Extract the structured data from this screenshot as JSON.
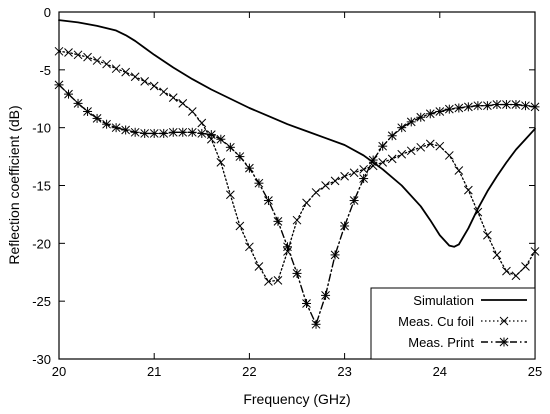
{
  "chart_data": {
    "type": "line",
    "xlabel": "Frequency (GHz)",
    "ylabel": "Reflection coefficient (dB)",
    "xlim": [
      20,
      25
    ],
    "ylim": [
      -30,
      0
    ],
    "xticks": [
      20,
      21,
      22,
      23,
      24,
      25
    ],
    "yticks": [
      0,
      -5,
      -10,
      -15,
      -20,
      -25,
      -30
    ],
    "grid": false,
    "legend_position": "bottom-right",
    "series": [
      {
        "name": "Simulation",
        "line_style": "solid",
        "marker": "none",
        "color": "#000000",
        "x": [
          20.0,
          20.2,
          20.4,
          20.6,
          20.7,
          20.8,
          20.9,
          21.0,
          21.2,
          21.4,
          21.6,
          21.8,
          22.0,
          22.2,
          22.4,
          22.6,
          22.8,
          23.0,
          23.2,
          23.4,
          23.6,
          23.8,
          23.9,
          24.0,
          24.1,
          24.15,
          24.2,
          24.3,
          24.4,
          24.5,
          24.6,
          24.7,
          24.8,
          24.9,
          25.0
        ],
        "y": [
          -0.7,
          -0.9,
          -1.2,
          -1.6,
          -2.0,
          -2.5,
          -3.1,
          -3.7,
          -4.8,
          -5.8,
          -6.7,
          -7.5,
          -8.3,
          -9.0,
          -9.7,
          -10.3,
          -10.9,
          -11.5,
          -12.4,
          -13.6,
          -15.0,
          -16.8,
          -18.0,
          -19.3,
          -20.2,
          -20.3,
          -20.1,
          -18.7,
          -17.0,
          -15.5,
          -14.2,
          -13.0,
          -11.9,
          -11.0,
          -10.1
        ]
      },
      {
        "name": "Meas. Cu foil",
        "line_style": "dotted",
        "marker": "x",
        "color": "#000000",
        "x": [
          20.0,
          20.1,
          20.2,
          20.3,
          20.4,
          20.5,
          20.6,
          20.7,
          20.8,
          20.9,
          21.0,
          21.1,
          21.2,
          21.3,
          21.4,
          21.5,
          21.6,
          21.7,
          21.8,
          21.9,
          22.0,
          22.1,
          22.2,
          22.3,
          22.4,
          22.5,
          22.6,
          22.7,
          22.8,
          22.9,
          23.0,
          23.1,
          23.2,
          23.3,
          23.4,
          23.5,
          23.6,
          23.7,
          23.8,
          23.9,
          24.0,
          24.1,
          24.2,
          24.3,
          24.4,
          24.5,
          24.6,
          24.7,
          24.8,
          24.9,
          25.0
        ],
        "y": [
          -3.4,
          -3.5,
          -3.7,
          -3.9,
          -4.2,
          -4.5,
          -4.9,
          -5.2,
          -5.6,
          -6.0,
          -6.4,
          -6.9,
          -7.4,
          -7.9,
          -8.6,
          -9.6,
          -11.0,
          -13.0,
          -15.8,
          -18.5,
          -20.3,
          -22.0,
          -23.3,
          -23.2,
          -20.7,
          -18.0,
          -16.5,
          -15.6,
          -15.0,
          -14.6,
          -14.2,
          -13.9,
          -13.6,
          -13.3,
          -13.0,
          -12.7,
          -12.3,
          -12.0,
          -11.7,
          -11.4,
          -11.6,
          -12.4,
          -13.7,
          -15.4,
          -17.3,
          -19.3,
          -21.0,
          -22.4,
          -22.8,
          -22.0,
          -20.7
        ]
      },
      {
        "name": "Meas. Print",
        "line_style": "dash-dot",
        "marker": "asterisk",
        "color": "#000000",
        "x": [
          20.0,
          20.1,
          20.2,
          20.3,
          20.4,
          20.5,
          20.6,
          20.7,
          20.8,
          20.9,
          21.0,
          21.1,
          21.2,
          21.3,
          21.4,
          21.5,
          21.6,
          21.7,
          21.8,
          21.9,
          22.0,
          22.1,
          22.2,
          22.3,
          22.4,
          22.5,
          22.6,
          22.7,
          22.8,
          22.9,
          23.0,
          23.1,
          23.2,
          23.3,
          23.4,
          23.5,
          23.6,
          23.7,
          23.8,
          23.9,
          24.0,
          24.1,
          24.2,
          24.3,
          24.4,
          24.5,
          24.6,
          24.7,
          24.8,
          24.9,
          25.0
        ],
        "y": [
          -6.3,
          -7.1,
          -7.9,
          -8.6,
          -9.2,
          -9.7,
          -10.0,
          -10.2,
          -10.4,
          -10.5,
          -10.5,
          -10.5,
          -10.4,
          -10.4,
          -10.4,
          -10.5,
          -10.6,
          -11.0,
          -11.7,
          -12.5,
          -13.5,
          -14.8,
          -16.3,
          -18.1,
          -20.3,
          -22.6,
          -25.2,
          -27.0,
          -24.5,
          -21.0,
          -18.5,
          -16.3,
          -14.4,
          -12.8,
          -11.6,
          -10.7,
          -10.0,
          -9.5,
          -9.1,
          -8.8,
          -8.6,
          -8.4,
          -8.3,
          -8.2,
          -8.1,
          -8.1,
          -8.0,
          -8.0,
          -8.0,
          -8.1,
          -8.2
        ]
      }
    ]
  }
}
